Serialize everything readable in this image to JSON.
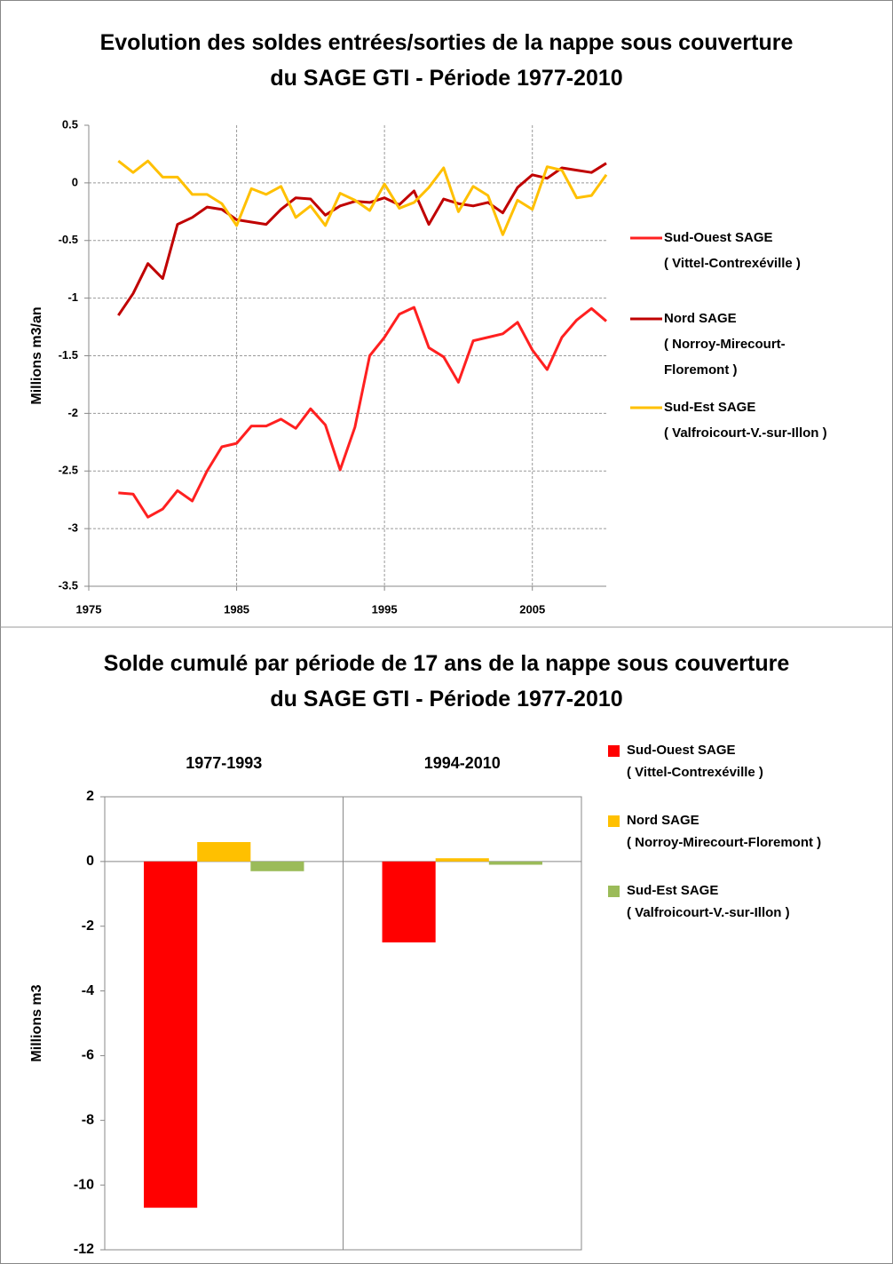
{
  "chart_data": [
    {
      "type": "line",
      "title": "Evolution des soldes entrées/sorties de la nappe sous couverture du SAGE GTI - Période 1977-2010",
      "y_label": "Millions m3/an",
      "x": [
        1977,
        1978,
        1979,
        1980,
        1981,
        1982,
        1983,
        1984,
        1985,
        1986,
        1987,
        1988,
        1989,
        1990,
        1991,
        1992,
        1993,
        1994,
        1995,
        1996,
        1997,
        1998,
        1999,
        2000,
        2001,
        2002,
        2003,
        2004,
        2005,
        2006,
        2007,
        2008,
        2009,
        2010
      ],
      "series": [
        {
          "name": "Sud-Ouest SAGE",
          "detail": [
            "( Vittel-Contrexéville )"
          ],
          "color": "#ff2020",
          "values": [
            -2.69,
            -2.7,
            -2.9,
            -2.83,
            -2.67,
            -2.76,
            -2.5,
            -2.29,
            -2.26,
            -2.11,
            -2.11,
            -2.05,
            -2.13,
            -1.96,
            -2.1,
            -2.49,
            -2.12,
            -1.5,
            -1.34,
            -1.14,
            -1.08,
            -1.43,
            -1.51,
            -1.73,
            -1.37,
            -1.34,
            -1.31,
            -1.21,
            -1.45,
            -1.62,
            -1.34,
            -1.19,
            -1.09,
            -1.2
          ]
        },
        {
          "name": "Nord SAGE",
          "detail": [
            "( Norroy-Mirecourt-",
            "Floremont )"
          ],
          "color": "#c00000",
          "values": [
            -1.15,
            -0.96,
            -0.7,
            -0.83,
            -0.36,
            -0.3,
            -0.21,
            -0.23,
            -0.32,
            -0.34,
            -0.36,
            -0.23,
            -0.13,
            -0.14,
            -0.28,
            -0.2,
            -0.16,
            -0.17,
            -0.13,
            -0.19,
            -0.07,
            -0.36,
            -0.14,
            -0.18,
            -0.2,
            -0.17,
            -0.26,
            -0.04,
            0.07,
            0.04,
            0.13,
            0.11,
            0.09,
            0.17
          ]
        },
        {
          "name": "Sud-Est SAGE",
          "detail": [
            "( Valfroicourt-V.-sur-Illon )"
          ],
          "color": "#ffc000",
          "values": [
            0.19,
            0.09,
            0.19,
            0.05,
            0.05,
            -0.1,
            -0.1,
            -0.18,
            -0.37,
            -0.05,
            -0.1,
            -0.03,
            -0.3,
            -0.2,
            -0.37,
            -0.09,
            -0.15,
            -0.24,
            -0.01,
            -0.22,
            -0.17,
            -0.04,
            0.13,
            -0.25,
            -0.03,
            -0.11,
            -0.45,
            -0.15,
            -0.23,
            0.14,
            0.11,
            -0.13,
            -0.11,
            0.07
          ]
        }
      ],
      "xlim": [
        1975,
        2010
      ],
      "xticks": [
        1975,
        1985,
        1995,
        2005
      ],
      "ylim": [
        -3.5,
        0.5
      ],
      "yticks": [
        0.5,
        0,
        -0.5,
        -1,
        -1.5,
        -2,
        -2.5,
        -3,
        -3.5
      ],
      "grid": true,
      "legend": "right"
    },
    {
      "type": "bar",
      "title": "Solde cumulé par période de 17 ans de la nappe sous couverture du SAGE GTI - Période 1977-2010",
      "y_label": "Millions m3",
      "categories": [
        "1977-1993",
        "1994-2010"
      ],
      "series": [
        {
          "name": "Sud-Ouest SAGE",
          "detail": [
            "( Vittel-Contrexéville )"
          ],
          "color": "#ff0000",
          "values": [
            -10.7,
            -2.5
          ]
        },
        {
          "name": "Nord SAGE",
          "detail": [
            "( Norroy-Mirecourt-Floremont )"
          ],
          "color": "#ffc000",
          "values": [
            0.6,
            0.1
          ]
        },
        {
          "name": "Sud-Est SAGE",
          "detail": [
            "( Valfroicourt-V.-sur-Illon )"
          ],
          "color": "#9bbb59",
          "values": [
            -0.3,
            -0.1
          ]
        }
      ],
      "ylim": [
        -12,
        2
      ],
      "yticks": [
        2,
        0,
        -2,
        -4,
        -6,
        -8,
        -10,
        -12
      ],
      "grid": false,
      "legend": "right"
    }
  ]
}
